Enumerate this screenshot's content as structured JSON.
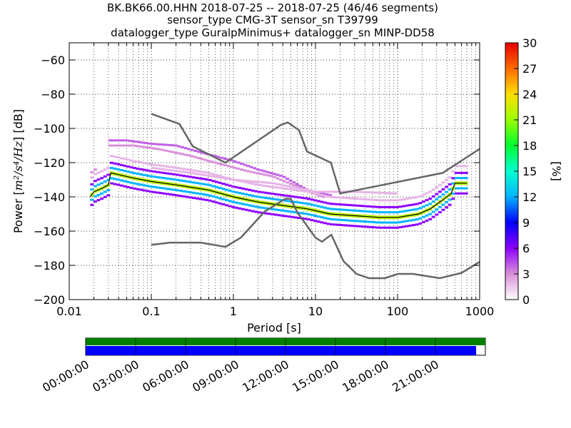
{
  "title": {
    "line1": "BK.BK66.00.HHN   2018-07-25 -- 2018-07-25  (46/46 segments)",
    "line2": "sensor_type CMG-3T sensor_sn T39799",
    "line3": "datalogger_type GuralpMinimus+ datalogger_sn MINP-DD58"
  },
  "colorbar": {
    "label": "[%]",
    "ticks": [
      "0",
      "3",
      "6",
      "9",
      "12",
      "15",
      "18",
      "21",
      "24",
      "27",
      "30"
    ],
    "range": [
      0,
      30
    ]
  },
  "timeline": {
    "ticks": [
      "00:00:00",
      "03:00:00",
      "06:00:00",
      "09:00:00",
      "12:00:00",
      "15:00:00",
      "18:00:00",
      "21:00:00"
    ],
    "coverage_fraction": 0.977,
    "colors": {
      "data": "#0000ff",
      "segments": "#008000"
    }
  },
  "chart_data": {
    "type": "heatmap",
    "xlabel": "Period [s]",
    "ylabel_prefix": "Power [",
    "ylabel_math": "m²/s⁴/Hz",
    "ylabel_suffix": "] [dB]",
    "xscale": "log",
    "xlim": [
      0.01,
      1000
    ],
    "ylim": [
      -200,
      -50
    ],
    "xticks": [
      {
        "v": 0.01,
        "label": "0.01"
      },
      {
        "v": 0.1,
        "label": "0.1"
      },
      {
        "v": 1,
        "label": "1"
      },
      {
        "v": 10,
        "label": "10"
      },
      {
        "v": 100,
        "label": "100"
      },
      {
        "v": 1000,
        "label": "1000"
      }
    ],
    "yticks": [
      {
        "v": -60,
        "label": "−60"
      },
      {
        "v": -80,
        "label": "−80"
      },
      {
        "v": -100,
        "label": "−100"
      },
      {
        "v": -120,
        "label": "−120"
      },
      {
        "v": -140,
        "label": "−140"
      },
      {
        "v": -160,
        "label": "−160"
      },
      {
        "v": -180,
        "label": "−180"
      },
      {
        "v": -200,
        "label": "−200"
      }
    ],
    "grid": true,
    "noise_models": {
      "high": [
        [
          0.1,
          -91.5
        ],
        [
          0.22,
          -97.4
        ],
        [
          0.32,
          -110.5
        ],
        [
          0.8,
          -120
        ],
        [
          3.8,
          -97.9
        ],
        [
          4.6,
          -96.5
        ],
        [
          6.3,
          -101
        ],
        [
          7.9,
          -113.5
        ],
        [
          15.4,
          -120
        ],
        [
          20,
          -138
        ],
        [
          354.8,
          -126
        ],
        [
          1000,
          -112
        ]
      ],
      "low": [
        [
          0.1,
          -168
        ],
        [
          0.17,
          -166.7
        ],
        [
          0.4,
          -166.7
        ],
        [
          0.8,
          -169.2
        ],
        [
          1.24,
          -163.7
        ],
        [
          2.4,
          -148.6
        ],
        [
          4.3,
          -141.1
        ],
        [
          5,
          -141.1
        ],
        [
          6,
          -149
        ],
        [
          10,
          -163.8
        ],
        [
          12,
          -166.2
        ],
        [
          15.6,
          -162.1
        ],
        [
          21.9,
          -177.5
        ],
        [
          31.6,
          -185
        ],
        [
          45,
          -187.5
        ],
        [
          70,
          -187.5
        ],
        [
          101,
          -185
        ],
        [
          154,
          -185
        ],
        [
          328,
          -187.5
        ],
        [
          600,
          -184.4
        ],
        [
          1000,
          -178
        ]
      ]
    },
    "mode_line": [
      [
        0.018,
        -140
      ],
      [
        0.02,
        -137
      ],
      [
        0.025,
        -135
      ],
      [
        0.03,
        -133
      ],
      [
        0.032,
        -126
      ],
      [
        0.04,
        -127
      ],
      [
        0.06,
        -129
      ],
      [
        0.1,
        -131
      ],
      [
        0.2,
        -133
      ],
      [
        0.5,
        -136
      ],
      [
        1,
        -140
      ],
      [
        2,
        -143
      ],
      [
        4,
        -145
      ],
      [
        8,
        -147
      ],
      [
        15,
        -150
      ],
      [
        30,
        -151
      ],
      [
        60,
        -152
      ],
      [
        100,
        -152
      ],
      [
        180,
        -150
      ],
      [
        250,
        -147
      ],
      [
        350,
        -142
      ],
      [
        450,
        -138
      ],
      [
        500,
        -132
      ],
      [
        700,
        -132
      ]
    ],
    "percentile_bands": [
      {
        "pct": 22,
        "offset": 0,
        "width": 5
      },
      {
        "pct": 12,
        "offset": -3,
        "width": 3
      },
      {
        "pct": 12,
        "offset": 3,
        "width": 3
      },
      {
        "pct": 6,
        "offset": -6,
        "width": 3
      },
      {
        "pct": 6,
        "offset": 6,
        "width": 3
      },
      {
        "pct": 2,
        "offset": 10,
        "width": 3
      }
    ],
    "outlier_traces": [
      {
        "pct": 4,
        "points": [
          [
            0.03,
            -107
          ],
          [
            0.05,
            -107
          ],
          [
            0.1,
            -109
          ],
          [
            0.2,
            -110
          ],
          [
            0.4,
            -114
          ],
          [
            1,
            -119
          ],
          [
            2,
            -124
          ],
          [
            4,
            -128
          ],
          [
            8,
            -136
          ],
          [
            15,
            -139
          ]
        ]
      },
      {
        "pct": 3,
        "points": [
          [
            0.03,
            -110
          ],
          [
            0.06,
            -110
          ],
          [
            0.12,
            -112
          ],
          [
            0.3,
            -116
          ],
          [
            0.6,
            -120
          ],
          [
            1.5,
            -125
          ],
          [
            3,
            -128
          ],
          [
            6,
            -134
          ],
          [
            12,
            -140
          ]
        ]
      },
      {
        "pct": 2,
        "points": [
          [
            0.1,
            -123
          ],
          [
            0.3,
            -126
          ],
          [
            1,
            -130
          ],
          [
            3,
            -132
          ],
          [
            10,
            -137
          ],
          [
            30,
            -137
          ],
          [
            100,
            -138
          ]
        ]
      },
      {
        "pct": 3,
        "points": [
          [
            0.018,
            -127
          ],
          [
            0.02,
            -124
          ]
        ]
      }
    ]
  }
}
